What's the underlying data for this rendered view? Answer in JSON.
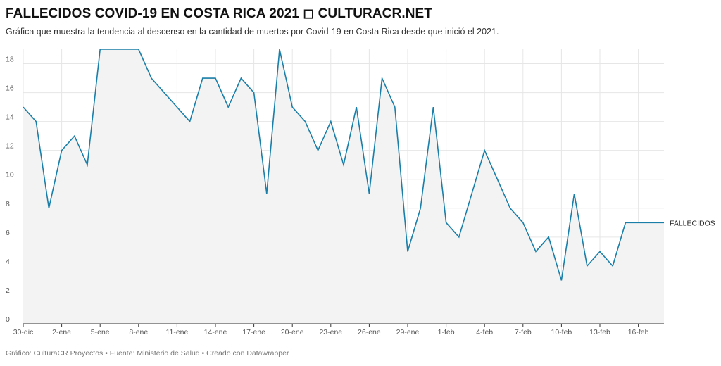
{
  "header": {
    "title": "FALLECIDOS COVID-19 EN COSTA RICA 2021 ◻ CULTURACR.NET",
    "subtitle": "Gráfica que muestra la tendencia al descenso en la cantidad de muertos por Covid-19 en Costa Rica desde que inició el 2021."
  },
  "footer": {
    "text": "Gráfico: CulturaCR Proyectos • Fuente: Ministerio de Salud • Creado con Datawrapper"
  },
  "colors": {
    "line": "#1a7fa8",
    "area": "#f3f3f3",
    "grid": "#e6e6e6",
    "axis": "#333333"
  },
  "chart_data": {
    "type": "area",
    "title": "FALLECIDOS COVID-19 EN COSTA RICA 2021 ◻ CULTURACR.NET",
    "xlabel": "",
    "ylabel": "",
    "ylim": [
      0,
      19
    ],
    "yticks": [
      0,
      2,
      4,
      6,
      8,
      10,
      12,
      14,
      16,
      18
    ],
    "grid": true,
    "legend": "inline-right",
    "x_tick_labels": [
      "30-dic",
      "2-ene",
      "5-ene",
      "8-ene",
      "11-ene",
      "14-ene",
      "17-ene",
      "20-ene",
      "23-ene",
      "26-ene",
      "29-ene",
      "1-feb",
      "4-feb",
      "7-feb",
      "10-feb",
      "13-feb",
      "16-feb"
    ],
    "x_tick_dates": [
      "2020-12-30",
      "2021-01-02",
      "2021-01-05",
      "2021-01-08",
      "2021-01-11",
      "2021-01-14",
      "2021-01-17",
      "2021-01-20",
      "2021-01-23",
      "2021-01-26",
      "2021-01-29",
      "2021-02-01",
      "2021-02-04",
      "2021-02-07",
      "2021-02-10",
      "2021-02-13",
      "2021-02-16"
    ],
    "series": [
      {
        "name": "FALLECIDOS",
        "x": [
          "2020-12-30",
          "2020-12-31",
          "2021-01-01",
          "2021-01-02",
          "2021-01-03",
          "2021-01-04",
          "2021-01-05",
          "2021-01-06",
          "2021-01-07",
          "2021-01-08",
          "2021-01-09",
          "2021-01-10",
          "2021-01-11",
          "2021-01-12",
          "2021-01-13",
          "2021-01-14",
          "2021-01-15",
          "2021-01-16",
          "2021-01-17",
          "2021-01-18",
          "2021-01-19",
          "2021-01-20",
          "2021-01-21",
          "2021-01-22",
          "2021-01-23",
          "2021-01-24",
          "2021-01-25",
          "2021-01-26",
          "2021-01-27",
          "2021-01-28",
          "2021-01-29",
          "2021-01-30",
          "2021-01-31",
          "2021-02-01",
          "2021-02-02",
          "2021-02-03",
          "2021-02-04",
          "2021-02-05",
          "2021-02-06",
          "2021-02-07",
          "2021-02-08",
          "2021-02-09",
          "2021-02-10",
          "2021-02-11",
          "2021-02-12",
          "2021-02-13",
          "2021-02-14",
          "2021-02-15",
          "2021-02-16",
          "2021-02-17",
          "2021-02-18"
        ],
        "values": [
          15,
          14,
          8,
          12,
          13,
          11,
          19,
          19,
          19,
          19,
          17,
          16,
          15,
          14,
          17,
          17,
          15,
          17,
          16,
          9,
          19,
          15,
          14,
          12,
          14,
          11,
          15,
          9,
          17,
          15,
          5,
          8,
          15,
          7,
          6,
          9,
          12,
          10,
          8,
          7,
          5,
          6,
          3,
          9,
          4,
          5,
          4,
          7,
          7,
          7,
          7
        ]
      }
    ]
  }
}
